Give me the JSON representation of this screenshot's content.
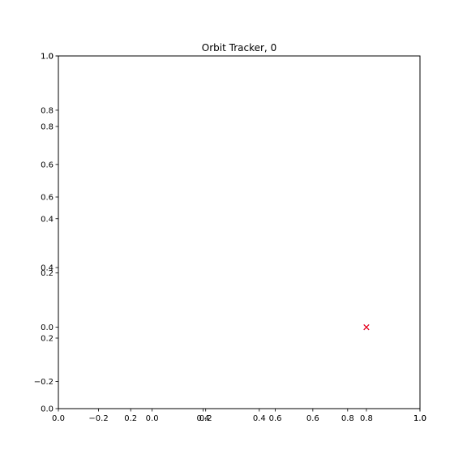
{
  "chart_data": [
    {
      "type": "scatter",
      "title": "Orbit Tracker, 0",
      "xlim": [
        0.0,
        1.0
      ],
      "ylim": [
        0.0,
        1.0
      ],
      "xticks": [
        0.0,
        0.2,
        0.4,
        0.6,
        0.8,
        1.0
      ],
      "xtick_labels": [
        "0.0",
        "0.2",
        "0.4",
        "0.6",
        "0.8",
        "1.0"
      ],
      "yticks": [
        0.0,
        0.2,
        0.4,
        0.6,
        0.8,
        1.0
      ],
      "ytick_labels": [
        "0.0",
        "0.2",
        "0.4",
        "0.6",
        "0.8",
        "1.0"
      ],
      "series": [],
      "grid": false
    },
    {
      "type": "scatter",
      "title": "",
      "xlim": [
        -0.35,
        1.0
      ],
      "ylim": [
        -0.3,
        1.0
      ],
      "xticks": [
        -0.2,
        0.0,
        0.2,
        0.4,
        0.6,
        0.8,
        1.0
      ],
      "xtick_labels": [
        "−0.2",
        "0.0",
        "0.2",
        "0.4",
        "0.6",
        "0.8",
        "1.0"
      ],
      "yticks": [
        -0.2,
        0.0,
        0.2,
        0.4,
        0.6,
        0.8,
        1.0
      ],
      "ytick_labels": [
        "−0.2",
        "0.0",
        "0.2",
        "0.4",
        "0.6",
        "0.8",
        "1.0"
      ],
      "series": [
        {
          "marker": "x",
          "color": "#0000ff",
          "x": [
            0.8
          ],
          "y": [
            0.0
          ]
        },
        {
          "marker": "x",
          "color": "#ff0000",
          "x": [
            0.8
          ],
          "y": [
            0.0
          ]
        }
      ],
      "grid": false
    }
  ]
}
